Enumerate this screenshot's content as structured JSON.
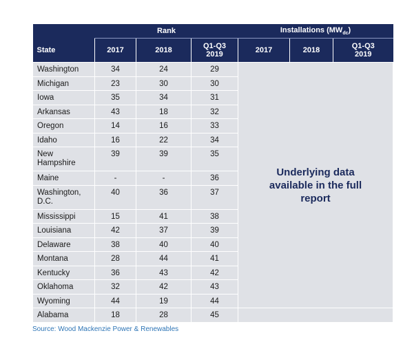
{
  "table": {
    "group_headers": {
      "rank": "Rank",
      "installations": [
        "Installations (MW",
        "dc",
        ")"
      ]
    },
    "columns": [
      "State",
      "2017",
      "2018",
      [
        "Q1-Q3",
        "2019"
      ],
      "2017",
      "2018",
      [
        "Q1-Q3",
        "2019"
      ]
    ],
    "rows": [
      [
        "Washington",
        34,
        24,
        29
      ],
      [
        "Michigan",
        23,
        30,
        30
      ],
      [
        "Iowa",
        35,
        34,
        31
      ],
      [
        "Arkansas",
        43,
        18,
        32
      ],
      [
        "Oregon",
        14,
        16,
        33
      ],
      [
        "Idaho",
        16,
        22,
        34
      ],
      [
        "New Hampshire",
        39,
        39,
        35
      ],
      [
        "Maine",
        "-",
        "-",
        36
      ],
      [
        "Washington, D.C.",
        40,
        36,
        37
      ],
      [
        "Mississippi",
        15,
        41,
        38
      ],
      [
        "Louisiana",
        42,
        37,
        39
      ],
      [
        "Delaware",
        38,
        40,
        40
      ],
      [
        "Montana",
        28,
        44,
        41
      ],
      [
        "Kentucky",
        36,
        43,
        42
      ],
      [
        "Oklahoma",
        32,
        42,
        43
      ],
      [
        "Wyoming",
        44,
        19,
        44
      ],
      [
        "Alabama",
        18,
        28,
        45
      ]
    ],
    "note": "Underlying data available in the full report"
  },
  "source": "Source: Wood Mackenzie Power & Renewables"
}
